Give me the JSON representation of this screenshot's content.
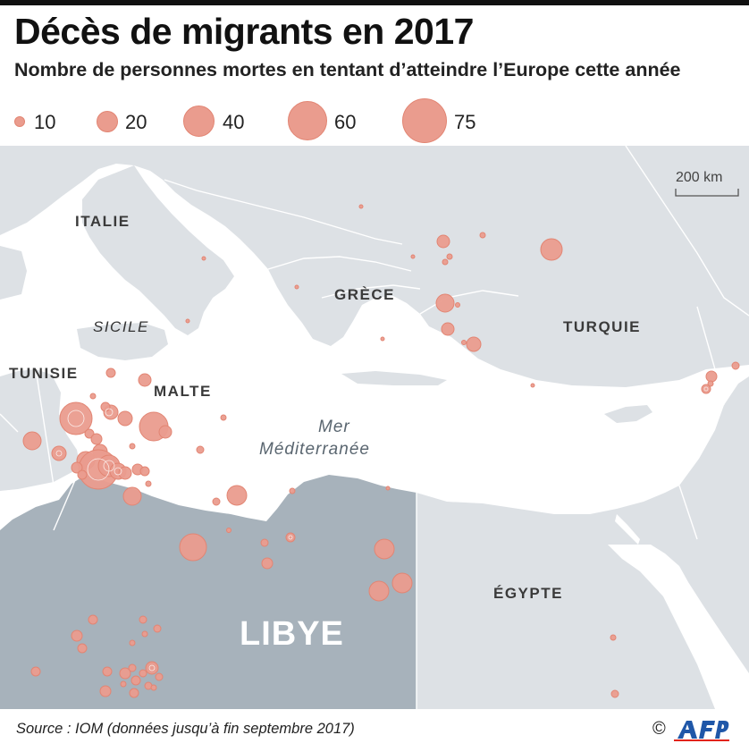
{
  "header": {
    "title": "Décès de migrants en 2017",
    "subtitle": "Nombre de personnes mortes en tentant d’atteindre l’Europe cette année"
  },
  "legend": {
    "items": [
      {
        "label": "10",
        "value": 10
      },
      {
        "label": "20",
        "value": 20
      },
      {
        "label": "40",
        "value": 40
      },
      {
        "label": "60",
        "value": 60
      },
      {
        "label": "75",
        "value": 75
      }
    ]
  },
  "map": {
    "scale_label": "200 km",
    "countries": {
      "italy": "ITALIE",
      "greece": "GRÈCE",
      "turkey": "TURQUIE",
      "tunisia": "TUNISIE",
      "malta": "MALTE",
      "egypt": "ÉGYPTE",
      "libya": "LIBYE"
    },
    "regions": {
      "sicily": "SICILE",
      "sea_line1": "Mer",
      "sea_line2": "Méditerranée"
    },
    "colors": {
      "land": "#dde1e5",
      "sea": "#ffffff",
      "libya": "#a7b2bb",
      "border": "#ffffff",
      "bubble_fill": "#ea9c8e",
      "bubble_stroke": "#e28573"
    }
  },
  "footer": {
    "source": "Source : IOM (données jusqu’à fin septembre 2017)",
    "copyright": "©",
    "logo": "afp-logo"
  }
}
